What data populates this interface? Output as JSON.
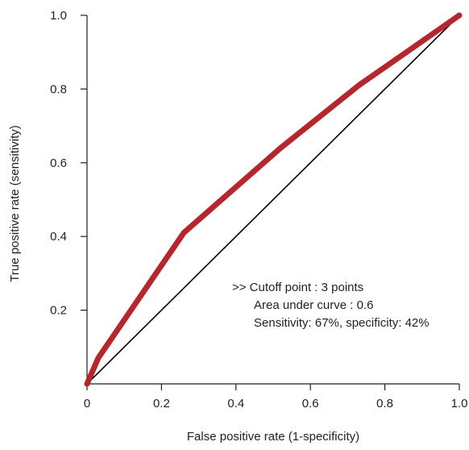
{
  "chart_data": {
    "type": "line",
    "title": "",
    "xlabel": "False positive rate (1-specificity)",
    "ylabel": "True positive rate (sensitivity)",
    "xlim": [
      0,
      1
    ],
    "ylim": [
      0,
      1
    ],
    "x_ticks": [
      0,
      0.2,
      0.4,
      0.6,
      0.8,
      1.0
    ],
    "x_tick_labels": [
      "0",
      "0.2",
      "0.4",
      "0.6",
      "0.8",
      "1.0"
    ],
    "y_ticks": [
      0.2,
      0.4,
      0.6,
      0.8,
      1.0
    ],
    "y_tick_labels": [
      "0.2",
      "0.4",
      "0.6",
      "0.8",
      "1.0"
    ],
    "grid": false,
    "series": [
      {
        "role": "roc-curve",
        "color": "#b5272d",
        "x": [
          0,
          0.03,
          0.26,
          0.52,
          0.73,
          1.0
        ],
        "y": [
          0,
          0.07,
          0.41,
          0.64,
          0.81,
          1.0
        ]
      },
      {
        "role": "reference-diagonal",
        "color": "#000000",
        "x": [
          0,
          1.0
        ],
        "y": [
          0,
          1.0
        ]
      }
    ],
    "annotations": [
      ">> Cutoff point : 3 points",
      "Area under curve : 0.6",
      "Sensitivity: 67%, specificity: 42%"
    ]
  }
}
